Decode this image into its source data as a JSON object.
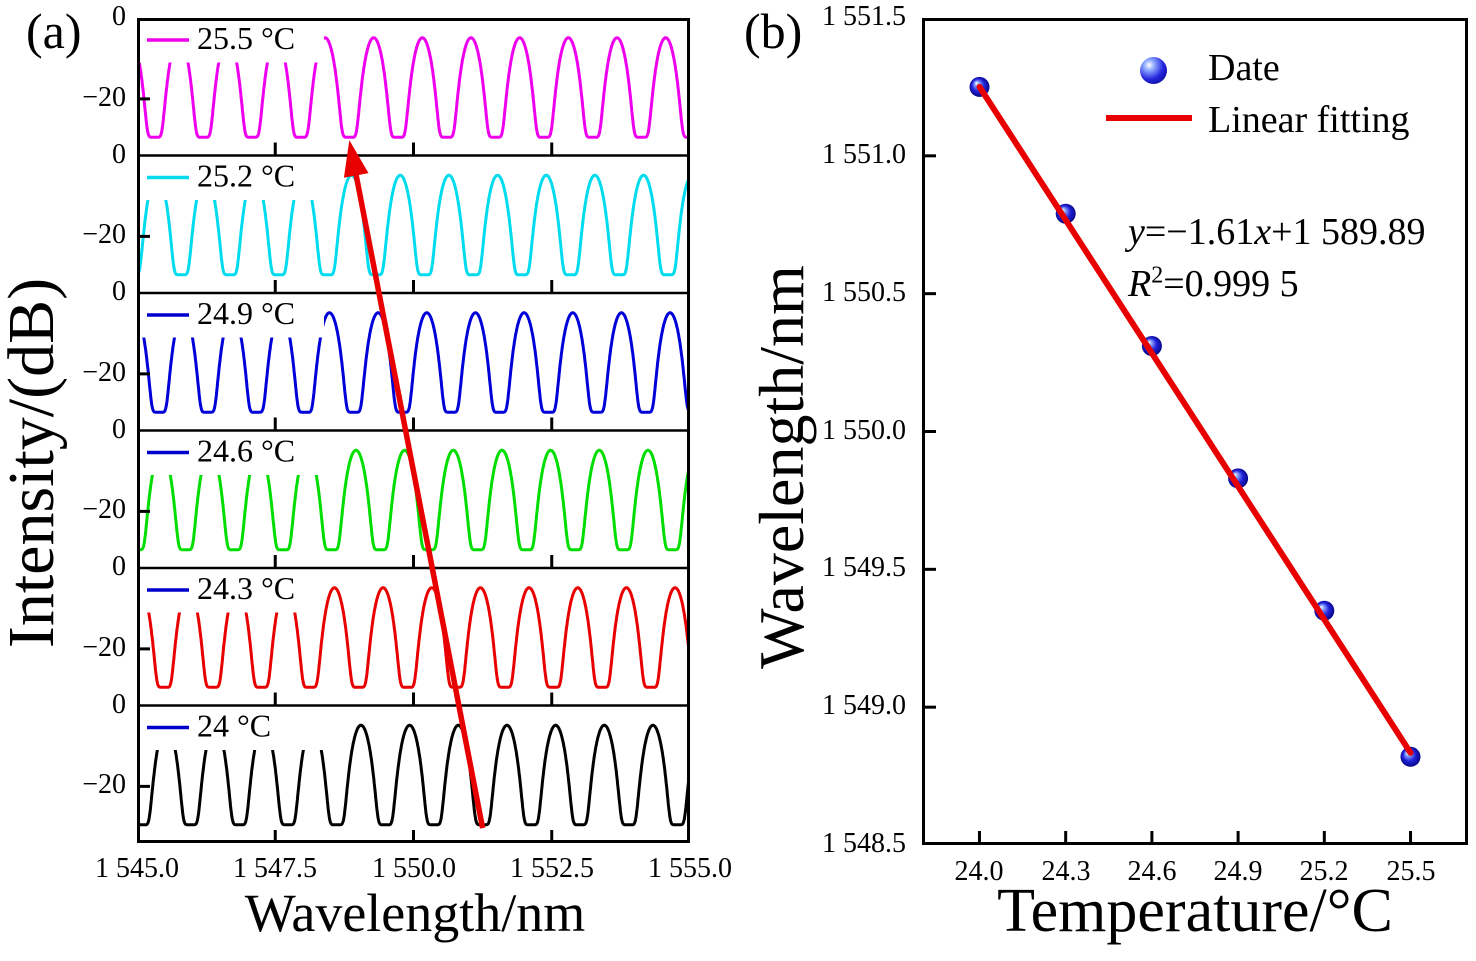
{
  "figure": {
    "panel_a_label": "(a)",
    "panel_b_label": "(b)"
  },
  "colors": {
    "axis": "#000000",
    "arrow_red": "#e80000",
    "fit_red": "#e80000",
    "sphere_blue": "#2424dc",
    "legend_swatch_blue": "#0000cd"
  },
  "chart_data": [
    {
      "id": "panel_a_spectra",
      "type": "line",
      "xlabel": "Wavelength/nm",
      "ylabel": "Intensity/(dB)",
      "x_range": [
        1545,
        1555
      ],
      "x_ticks": [
        {
          "value": 1545.0,
          "label": "1 545.0"
        },
        {
          "value": 1547.5,
          "label": "1 547.5"
        },
        {
          "value": 1550.0,
          "label": "1 550.0"
        },
        {
          "value": 1552.5,
          "label": "1 552.5"
        },
        {
          "value": 1555.0,
          "label": "1 555.0"
        }
      ],
      "subplot_y_range": [
        -34,
        0
      ],
      "subplot_y_ticks": [
        {
          "value": 0,
          "label": "0"
        },
        {
          "value": -20,
          "label": "−20"
        }
      ],
      "fringe_period_nm": 0.88,
      "fringe_top_dB": -4.9,
      "fringe_dip_dB": -29.5,
      "series": [
        {
          "label": "25.5 °C",
          "temperature_C": 25.5,
          "color": "#ee00ee",
          "legend_color": "#ee00ee",
          "dip_anchor_nm": 1548.84
        },
        {
          "label": "25.2 °C",
          "temperature_C": 25.2,
          "color": "#00dcee",
          "legend_color": "#00dcee",
          "dip_anchor_nm": 1549.32
        },
        {
          "label": "24.9 °C",
          "temperature_C": 24.9,
          "color": "#0000d8",
          "legend_color": "#0000cd",
          "dip_anchor_nm": 1549.8
        },
        {
          "label": "24.6 °C",
          "temperature_C": 24.6,
          "color": "#00dd00",
          "legend_color": "#0000cd",
          "dip_anchor_nm": 1550.28
        },
        {
          "label": "24.3 °C",
          "temperature_C": 24.3,
          "color": "#e80000",
          "legend_color": "#0000cd",
          "dip_anchor_nm": 1550.77
        },
        {
          "label": "24 °C",
          "temperature_C": 24.0,
          "color": "#000000",
          "legend_color": "#0000cd",
          "dip_anchor_nm": 1551.25
        }
      ],
      "arrow": {
        "color": "#e80000",
        "from_nm": 1551.25,
        "from_frac": 0.982,
        "to_nm": 1548.84,
        "to_frac": 0.148
      }
    },
    {
      "id": "panel_b_fit",
      "type": "scatter",
      "xlabel": "Temperature/°C",
      "ylabel": "Wavelength/nm",
      "x_range": [
        23.8,
        25.7
      ],
      "y_range": [
        1548.5,
        1551.5
      ],
      "x_ticks": [
        {
          "value": 24.0,
          "label": "24.0"
        },
        {
          "value": 24.3,
          "label": "24.3"
        },
        {
          "value": 24.6,
          "label": "24.6"
        },
        {
          "value": 24.9,
          "label": "24.9"
        },
        {
          "value": 25.2,
          "label": "25.2"
        },
        {
          "value": 25.5,
          "label": "25.5"
        }
      ],
      "y_ticks": [
        {
          "value": 1548.5,
          "label": "1 548.5"
        },
        {
          "value": 1549.0,
          "label": "1 549.0"
        },
        {
          "value": 1549.5,
          "label": "1 549.5"
        },
        {
          "value": 1550.0,
          "label": "1 550.0"
        },
        {
          "value": 1550.5,
          "label": "1 550.5"
        },
        {
          "value": 1551.0,
          "label": "1 551.0"
        },
        {
          "value": 1551.5,
          "label": "1 551.5"
        }
      ],
      "points": {
        "x": [
          24.0,
          24.3,
          24.6,
          24.9,
          25.2,
          25.5
        ],
        "y": [
          1551.25,
          1550.79,
          1550.31,
          1549.83,
          1549.35,
          1548.82
        ],
        "color": "#2424dc"
      },
      "fit": {
        "slope": -1.61,
        "intercept": 1589.89,
        "x_start": 24.0,
        "x_end": 25.5,
        "color": "#e80000",
        "width": 6
      },
      "legend": [
        {
          "marker": "sphere",
          "label": "Date",
          "color": "#2424dc"
        },
        {
          "marker": "line",
          "label": "Linear fitting",
          "color": "#e80000"
        }
      ],
      "annotation": {
        "eq_y": "y",
        "eq_mid": "=−1.61",
        "eq_x": "x",
        "eq_end": "+1 589.89",
        "r_label": "R",
        "r_sup": "2",
        "r_value": "=0.999 5"
      }
    }
  ]
}
